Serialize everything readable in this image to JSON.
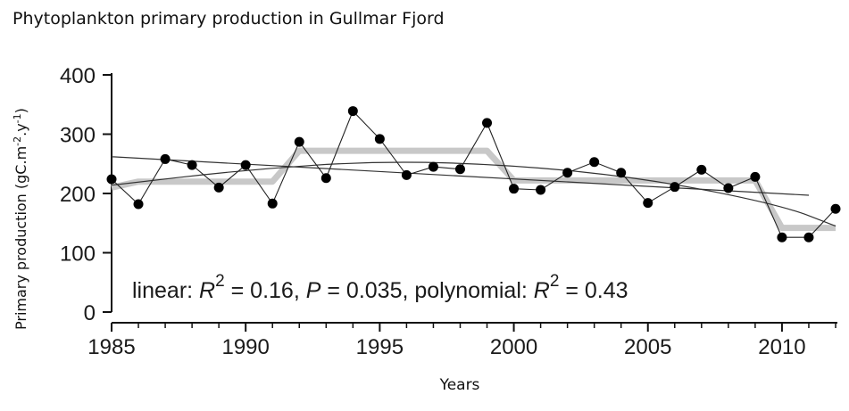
{
  "chart_data": {
    "type": "line",
    "title": "Phytoplankton primary production in Gullmar Fjord",
    "xlabel": "Years",
    "ylabel": "Primary production (gC.m-2.y-1)",
    "ylabel_parts": {
      "base": "Primary production (gC.m",
      "exp1": "-2",
      "mid": ".y",
      "exp2": "-1",
      "end": ")"
    },
    "xlim": [
      1985,
      2012
    ],
    "ylim": [
      0,
      400
    ],
    "xticks": [
      1985,
      1990,
      1995,
      2000,
      2005,
      2010
    ],
    "yticks": [
      0,
      100,
      200,
      300,
      400
    ],
    "grid": false,
    "series": [
      {
        "style": "points-connected",
        "color": "#000000",
        "x": [
          1985,
          1986,
          1987,
          1988,
          1989,
          1990,
          1991,
          1992,
          1993,
          1994,
          1995,
          1996,
          1997,
          1998,
          1999,
          2000,
          2001,
          2002,
          2003,
          2004,
          2005,
          2006,
          2007,
          2008,
          2009,
          2010,
          2011,
          2012
        ],
        "y": [
          224,
          182,
          258,
          248,
          210,
          248,
          183,
          287,
          226,
          339,
          292,
          231,
          245,
          241,
          319,
          208,
          206,
          235,
          253,
          235,
          184,
          211,
          240,
          209,
          228,
          126,
          126,
          174
        ]
      },
      {
        "style": "step-means",
        "color": "#c8c8c8",
        "x": [
          1985,
          1986,
          1991,
          1992,
          1999,
          2000,
          2009,
          2010,
          2012
        ],
        "y": [
          210,
          220,
          220,
          272,
          272,
          222,
          222,
          142,
          142
        ]
      },
      {
        "style": "linear-fit",
        "color": "#333333",
        "x": [
          1985,
          2011
        ],
        "y": [
          262,
          197
        ]
      },
      {
        "style": "polynomial-fit",
        "color": "#333333",
        "x": [
          1985,
          1990,
          1995,
          2000,
          2005,
          2010,
          2012
        ],
        "y": [
          214,
          240,
          255,
          248,
          225,
          180,
          145
        ]
      }
    ],
    "annotation": {
      "linear": "linear: ",
      "r": "R",
      "sq": "2",
      "lin_val": " = 0.16, ",
      "p": "P",
      "p_val": " = 0.035, polynomial: ",
      "poly_val": " = 0.43"
    }
  }
}
